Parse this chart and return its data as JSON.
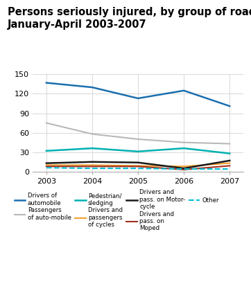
{
  "title_line1": "Persons seriously injured, by group of road-user.",
  "title_line2": "January-April 2003-2007",
  "years": [
    2003,
    2004,
    2005,
    2006,
    2007
  ],
  "series": {
    "Drivers of automobile": {
      "values": [
        137,
        130,
        113,
        125,
        101
      ],
      "color": "#1a6faf",
      "linestyle": "solid",
      "linewidth": 1.8
    },
    "Passengers of auto-mobile": {
      "values": [
        75,
        58,
        50,
        45,
        43
      ],
      "color": "#b8b8b8",
      "linestyle": "solid",
      "linewidth": 1.5
    },
    "Pedestrian/sledging": {
      "values": [
        32,
        36,
        31,
        36,
        28
      ],
      "color": "#00b0b0",
      "linestyle": "solid",
      "linewidth": 1.8
    },
    "Drivers and passengers of cycles": {
      "values": [
        10,
        10,
        9,
        8,
        13
      ],
      "color": "#f0a030",
      "linestyle": "solid",
      "linewidth": 1.5
    },
    "Drivers and pass. on Motor-cycle": {
      "values": [
        13,
        15,
        14,
        5,
        17
      ],
      "color": "#1a1a1a",
      "linestyle": "solid",
      "linewidth": 1.8
    },
    "Drivers and pass. on Moped": {
      "values": [
        8,
        8,
        8,
        3,
        9
      ],
      "color": "#a03020",
      "linestyle": "solid",
      "linewidth": 1.5
    },
    "Other": {
      "values": [
        6,
        5,
        5,
        4,
        4
      ],
      "color": "#00c0d8",
      "linestyle": "dashed",
      "linewidth": 1.5
    }
  },
  "legend_order": [
    "Drivers of automobile",
    "Passengers of auto-mobile",
    "Pedestrian/sledging",
    "Drivers and passengers of cycles",
    "Drivers and pass. on Motor-cycle",
    "Drivers and pass. on Moped",
    "Other"
  ],
  "legend_labels": [
    "Drivers of\nautomobile",
    "Passengers\nof auto-mobile",
    "Pedestrian/\nsledging",
    "Drivers and\npassengers\nof cycles",
    "Drivers and\npass. on Motor-\ncycle",
    "Drivers and\npass. on\nMoped",
    "Other"
  ],
  "ylim": [
    0,
    150
  ],
  "yticks": [
    0,
    30,
    60,
    90,
    120,
    150
  ],
  "bg_color": "#ffffff",
  "grid_color": "#d8d8d8",
  "title_fontsize": 10.5
}
